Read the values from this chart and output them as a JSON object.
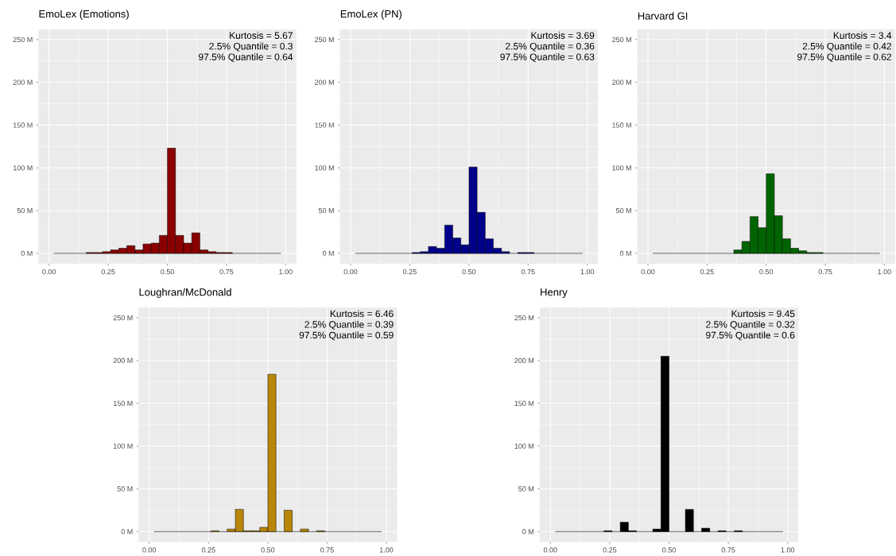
{
  "chart_data": [
    {
      "type": "histogram",
      "title": "EmoLex (Emotions)",
      "ref_lines": [
        {
          "axis": "y",
          "value": 0,
          "color": "#000000"
        }
      ],
      "annotations": [
        "Kurtosis = 5.67",
        "2.5% Quantile = 0.3",
        "97.5% Quantile = 0.64"
      ],
      "color": "#8b0000",
      "grid": true,
      "bins": [
        0.02,
        0.0543,
        0.0886,
        0.1229,
        0.1572,
        0.1915,
        0.2258,
        0.2601,
        0.2944,
        0.3287,
        0.363,
        0.3973,
        0.4316,
        0.4659,
        0.5002,
        0.5345,
        0.5688,
        0.6031,
        0.6374,
        0.6717,
        0.706,
        0.7403,
        0.7746,
        0.8089,
        0.8432,
        0.8775,
        0.9118,
        0.9461,
        0.9804
      ],
      "values": [
        0,
        0,
        0,
        0,
        1,
        1,
        2,
        4,
        6,
        9,
        4,
        11,
        12,
        21,
        123,
        21,
        12,
        24,
        4,
        2,
        1,
        1,
        0,
        0,
        0,
        0,
        0,
        0
      ],
      "xlim": [
        -0.045,
        1.045
      ],
      "ylim": [
        -12,
        262
      ],
      "xticks": [
        {
          "value": 0,
          "label": "0.00"
        },
        {
          "value": 0.25,
          "label": "0.25"
        },
        {
          "value": 0.5,
          "label": "0.50"
        },
        {
          "value": 0.75,
          "label": "0.75"
        },
        {
          "value": 1,
          "label": "1.00"
        }
      ],
      "yticks": [
        {
          "value": 0,
          "label": "0 M"
        },
        {
          "value": 50,
          "label": "50 M"
        },
        {
          "value": 100,
          "label": "100 M"
        },
        {
          "value": 150,
          "label": "150 M"
        },
        {
          "value": 200,
          "label": "200 M"
        },
        {
          "value": 250,
          "label": "250 M"
        }
      ]
    },
    {
      "type": "histogram",
      "title": "EmoLex (PN)",
      "ref_lines": [
        {
          "axis": "y",
          "value": 0,
          "color": "#000000"
        }
      ],
      "annotations": [
        "Kurtosis = 3.69",
        "2.5% Quantile = 0.36",
        "97.5% Quantile = 0.63"
      ],
      "color": "#00008b",
      "grid": true,
      "bins": [
        0.02,
        0.0543,
        0.0886,
        0.1229,
        0.1572,
        0.1915,
        0.2258,
        0.2601,
        0.2944,
        0.3287,
        0.363,
        0.3973,
        0.4316,
        0.4659,
        0.5002,
        0.5345,
        0.5688,
        0.6031,
        0.6374,
        0.6717,
        0.706,
        0.7403,
        0.7746,
        0.8089,
        0.8432,
        0.8775,
        0.9118,
        0.9461,
        0.9804
      ],
      "values": [
        0,
        0,
        0,
        0,
        0,
        0,
        0,
        1,
        2,
        8,
        6,
        33,
        18,
        10,
        101,
        48,
        17,
        6,
        2,
        0,
        1,
        1,
        0,
        0,
        0,
        0,
        0,
        0
      ],
      "xlim": [
        -0.045,
        1.045
      ],
      "ylim": [
        -12,
        262
      ],
      "xticks": [
        {
          "value": 0,
          "label": "0.00"
        },
        {
          "value": 0.25,
          "label": "0.25"
        },
        {
          "value": 0.5,
          "label": "0.50"
        },
        {
          "value": 0.75,
          "label": "0.75"
        },
        {
          "value": 1,
          "label": "1.00"
        }
      ],
      "yticks": [
        {
          "value": 0,
          "label": "0 M"
        },
        {
          "value": 50,
          "label": "50 M"
        },
        {
          "value": 100,
          "label": "100 M"
        },
        {
          "value": 150,
          "label": "150 M"
        },
        {
          "value": 200,
          "label": "200 M"
        },
        {
          "value": 250,
          "label": "250 M"
        }
      ]
    },
    {
      "type": "histogram",
      "title": "Harvard GI",
      "ref_lines": [
        {
          "axis": "y",
          "value": 0,
          "color": "#000000"
        }
      ],
      "annotations": [
        "Kurtosis = 3.4",
        "2.5% Quantile = 0.42",
        "97.5% Quantile = 0.62"
      ],
      "color": "#006400",
      "grid": true,
      "bins": [
        0.02,
        0.0543,
        0.0886,
        0.1229,
        0.1572,
        0.1915,
        0.2258,
        0.2601,
        0.2944,
        0.3287,
        0.363,
        0.3973,
        0.4316,
        0.4659,
        0.5002,
        0.5345,
        0.5688,
        0.6031,
        0.6374,
        0.6717,
        0.706,
        0.7403,
        0.7746,
        0.8089,
        0.8432,
        0.8775,
        0.9118,
        0.9461,
        0.9804
      ],
      "values": [
        0,
        0,
        0,
        0,
        0,
        0,
        0,
        0,
        0,
        0,
        4,
        14,
        43,
        30,
        93,
        44,
        17,
        6,
        3,
        1,
        1,
        0,
        0,
        0,
        0,
        0,
        0,
        0
      ],
      "xlim": [
        -0.045,
        1.045
      ],
      "ylim": [
        -12,
        262
      ],
      "xticks": [
        {
          "value": 0,
          "label": "0.00"
        },
        {
          "value": 0.25,
          "label": "0.25"
        },
        {
          "value": 0.5,
          "label": "0.50"
        },
        {
          "value": 0.75,
          "label": "0.75"
        },
        {
          "value": 1,
          "label": "1.00"
        }
      ],
      "yticks": [
        {
          "value": 0,
          "label": "0 M"
        },
        {
          "value": 50,
          "label": "50 M"
        },
        {
          "value": 100,
          "label": "100 M"
        },
        {
          "value": 150,
          "label": "150 M"
        },
        {
          "value": 200,
          "label": "200 M"
        },
        {
          "value": 250,
          "label": "250 M"
        }
      ]
    },
    {
      "type": "histogram",
      "title": "Loughran/McDonald",
      "ref_lines": [
        {
          "axis": "y",
          "value": 0,
          "color": "#000000"
        }
      ],
      "annotations": [
        "Kurtosis = 6.46",
        "2.5% Quantile = 0.39",
        "97.5% Quantile = 0.59"
      ],
      "color": "#b8860b",
      "grid": true,
      "bins": [
        0.02,
        0.0543,
        0.0886,
        0.1229,
        0.1572,
        0.1915,
        0.2258,
        0.2601,
        0.2944,
        0.3287,
        0.363,
        0.3973,
        0.4316,
        0.4659,
        0.5002,
        0.5345,
        0.5688,
        0.6031,
        0.6374,
        0.6717,
        0.706,
        0.7403,
        0.7746,
        0.8089,
        0.8432,
        0.8775,
        0.9118,
        0.9461,
        0.9804
      ],
      "values": [
        0,
        0,
        0,
        0,
        0,
        0,
        0,
        1,
        0,
        3,
        26,
        1,
        1,
        5,
        184,
        0,
        25,
        0,
        3,
        0,
        1,
        0,
        0,
        0,
        0,
        0,
        0,
        0
      ],
      "xlim": [
        -0.045,
        1.045
      ],
      "ylim": [
        -12,
        262
      ],
      "xticks": [
        {
          "value": 0,
          "label": "0.00"
        },
        {
          "value": 0.25,
          "label": "0.25"
        },
        {
          "value": 0.5,
          "label": "0.50"
        },
        {
          "value": 0.75,
          "label": "0.75"
        },
        {
          "value": 1,
          "label": "1.00"
        }
      ],
      "yticks": [
        {
          "value": 0,
          "label": "0 M"
        },
        {
          "value": 50,
          "label": "50 M"
        },
        {
          "value": 100,
          "label": "100 M"
        },
        {
          "value": 150,
          "label": "150 M"
        },
        {
          "value": 200,
          "label": "200 M"
        },
        {
          "value": 250,
          "label": "250 M"
        }
      ]
    },
    {
      "type": "histogram",
      "title": "Henry",
      "ref_lines": [
        {
          "axis": "y",
          "value": 0,
          "color": "#000000"
        }
      ],
      "annotations": [
        "Kurtosis = 9.45",
        "2.5% Quantile = 0.32",
        "97.5% Quantile = 0.6"
      ],
      "color": "#000000",
      "grid": true,
      "bins": [
        0.02,
        0.0543,
        0.0886,
        0.1229,
        0.1572,
        0.1915,
        0.2258,
        0.2601,
        0.2944,
        0.3287,
        0.363,
        0.3973,
        0.4316,
        0.4659,
        0.5002,
        0.5345,
        0.5688,
        0.6031,
        0.6374,
        0.6717,
        0.706,
        0.7403,
        0.7746,
        0.8089,
        0.8432,
        0.8775,
        0.9118,
        0.9461,
        0.9804
      ],
      "values": [
        0,
        0,
        0,
        0,
        0,
        0,
        1,
        0,
        11,
        1,
        0,
        0,
        3,
        205,
        0,
        0,
        26,
        0,
        4,
        0,
        1,
        0,
        1,
        0,
        0,
        0,
        0,
        0
      ],
      "xlim": [
        -0.045,
        1.045
      ],
      "ylim": [
        -12,
        262
      ],
      "xticks": [
        {
          "value": 0,
          "label": "0.00"
        },
        {
          "value": 0.25,
          "label": "0.25"
        },
        {
          "value": 0.5,
          "label": "0.50"
        },
        {
          "value": 0.75,
          "label": "0.75"
        },
        {
          "value": 1,
          "label": "1.00"
        }
      ],
      "yticks": [
        {
          "value": 0,
          "label": "0 M"
        },
        {
          "value": 50,
          "label": "50 M"
        },
        {
          "value": 100,
          "label": "100 M"
        },
        {
          "value": 150,
          "label": "150 M"
        },
        {
          "value": 200,
          "label": "200 M"
        },
        {
          "value": 250,
          "label": "250 M"
        }
      ]
    }
  ]
}
